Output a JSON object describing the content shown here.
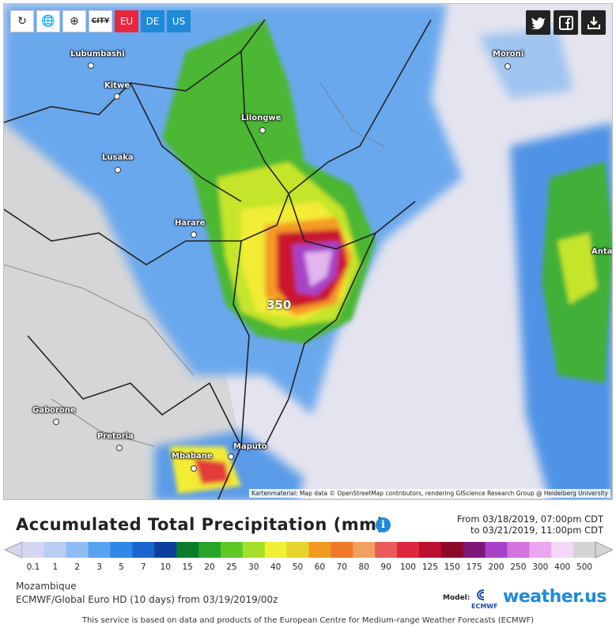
{
  "toolbar": {
    "reload_icon": "reload-icon",
    "globe_icon": "globe-icon",
    "zoom_icon": "zoom-icon",
    "city_label": "CITY",
    "regions": [
      "EU",
      "DE",
      "US"
    ]
  },
  "share": {
    "twitter": "t",
    "facebook": "f",
    "download": "download-icon"
  },
  "cities": [
    {
      "name": "Lubumbashi"
    },
    {
      "name": "Kitwe"
    },
    {
      "name": "Lusaka"
    },
    {
      "name": "Lilongwe"
    },
    {
      "name": "Harare"
    },
    {
      "name": "Moroni"
    },
    {
      "name": "Gaborone"
    },
    {
      "name": "Pretoria"
    },
    {
      "name": "Mbabane"
    },
    {
      "name": "Maputo"
    },
    {
      "name": "Anta"
    }
  ],
  "max_value": "350",
  "attribution": "Kartenmaterial: Map data © OpenStreetMap contributors, rendering GIScience Research Group @ Heidelberg University",
  "title": "Accumulated Total Precipitation (mm)",
  "period": {
    "from": "From 03/18/2019, 07:00pm CDT",
    "to": "to 03/21/2019, 11:00pm CDT"
  },
  "legend": {
    "ticks": [
      "0.1",
      "1",
      "2",
      "3",
      "5",
      "7",
      "10",
      "15",
      "20",
      "25",
      "30",
      "40",
      "50",
      "60",
      "70",
      "80",
      "90",
      "100",
      "125",
      "150",
      "175",
      "200",
      "250",
      "300",
      "400",
      "500"
    ],
    "colors": [
      "#d5d4f1",
      "#b9cdf3",
      "#8fbcf2",
      "#5aa2ef",
      "#2f86e6",
      "#1a64cf",
      "#0c3f9c",
      "#0a7a2b",
      "#27a52b",
      "#5ec924",
      "#a5e02a",
      "#f0f035",
      "#e6d52e",
      "#f39a22",
      "#f07a2a",
      "#f1a062",
      "#ea5a5a",
      "#e0253e",
      "#b8102e",
      "#8e0a2c",
      "#7f177a",
      "#a742c8",
      "#d273de",
      "#e9a7ef",
      "#f4d7f6",
      "#d4d4d4"
    ]
  },
  "region_name": "Mozambique",
  "model_line": "ECMWF/Global Euro HD (10 days) from 03/19/2019/00z",
  "model_label": "Model:",
  "ecmwf": "ECMWF",
  "brand": "weather.us",
  "footer": "This service is based on data and products of the European Centre for Medium-range Weather Forecasts (ECMWF)"
}
